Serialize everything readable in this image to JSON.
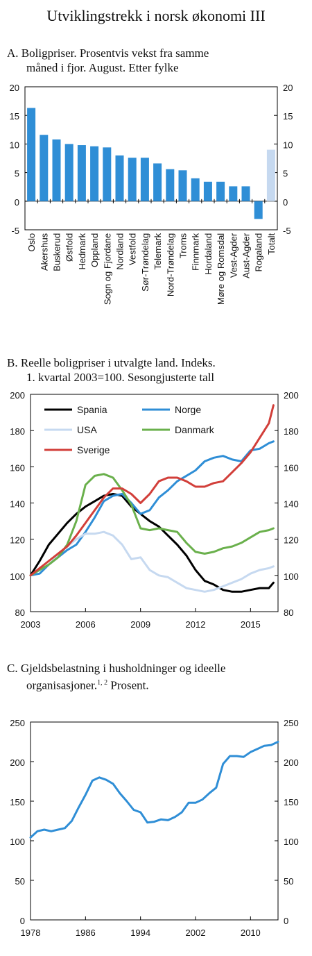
{
  "page": {
    "title": "Utviklingstrekk i norsk økonomi III"
  },
  "panels": [
    {
      "letter": "A.",
      "title_line1": "Boligpriser. Prosentvis vekst fra samme",
      "title_line2": "måned i fjor. August. Etter fylke"
    },
    {
      "letter": "B.",
      "title_line1": "Reelle boligpriser i utvalgte land. Indeks.",
      "title_line2": "1. kvartal 2003=100. Sesongjusterte tall"
    },
    {
      "letter": "C.",
      "title_line1": "Gjeldsbelastning i husholdninger og ideelle",
      "title_line2": "organisasjoner.",
      "superscript": "1, 2",
      "title_line2_tail": " Prosent."
    }
  ],
  "chart_data": [
    {
      "type": "bar",
      "categories": [
        "Oslo",
        "Akershus",
        "Buskerud",
        "Østfold",
        "Hedmark",
        "Oppland",
        "Sogn og Fjordane",
        "Nordland",
        "Vestfold",
        "Sør-Trøndelag",
        "Telemark",
        "Nord-Trøndelag",
        "Troms",
        "Finnmark",
        "Hordaland",
        "Møre og Romsdal",
        "Vest-Agder",
        "Aust-Agder",
        "Rogaland",
        "Totalt"
      ],
      "values": [
        16.3,
        11.6,
        10.8,
        10.0,
        9.8,
        9.6,
        9.4,
        8.0,
        7.6,
        7.6,
        6.6,
        5.6,
        5.4,
        4.0,
        3.4,
        3.4,
        2.6,
        2.6,
        -3.1,
        9.0
      ],
      "colors": {
        "bar": "#2f8ed6",
        "total": "#c6d9f0"
      },
      "ylim": [
        -5,
        20
      ],
      "yticks": [
        -5,
        0,
        5,
        10,
        15,
        20
      ],
      "dual_axis": true
    },
    {
      "type": "line",
      "ylim": [
        80,
        200
      ],
      "yticks": [
        80,
        100,
        120,
        140,
        160,
        180,
        200
      ],
      "xlim": [
        2003,
        2016.5
      ],
      "xticks": [
        2003,
        2006,
        2009,
        2012,
        2015
      ],
      "dual_axis": true,
      "series": [
        {
          "name": "Spania",
          "color": "#000000",
          "x": [
            2003,
            2003.5,
            2004,
            2004.5,
            2005,
            2005.5,
            2006,
            2006.5,
            2007,
            2007.5,
            2008,
            2008.5,
            2009,
            2009.5,
            2010,
            2010.5,
            2011,
            2011.5,
            2012,
            2012.5,
            2013,
            2013.5,
            2014,
            2014.5,
            2015,
            2015.5,
            2016,
            2016.25
          ],
          "values": [
            100,
            108,
            117,
            123,
            129,
            134,
            138,
            141,
            144,
            145,
            144,
            138,
            134,
            130,
            127,
            122,
            117,
            111,
            103,
            97,
            95,
            92,
            91,
            91,
            92,
            93,
            93,
            96
          ]
        },
        {
          "name": "Norge",
          "color": "#2f8ed6",
          "x": [
            2003,
            2003.5,
            2004,
            2004.5,
            2005,
            2005.5,
            2006,
            2006.5,
            2007,
            2007.5,
            2008,
            2008.5,
            2009,
            2009.5,
            2010,
            2010.5,
            2011,
            2011.5,
            2012,
            2012.5,
            2013,
            2013.5,
            2014,
            2014.5,
            2015,
            2015.5,
            2016,
            2016.25
          ],
          "values": [
            100,
            101,
            106,
            110,
            114,
            117,
            124,
            132,
            141,
            144,
            145,
            140,
            134,
            136,
            143,
            147,
            152,
            155,
            158,
            163,
            165,
            166,
            164,
            163,
            169,
            170,
            173,
            174
          ]
        },
        {
          "name": "USA",
          "color": "#c6d9f0",
          "x": [
            2003,
            2003.5,
            2004,
            2004.5,
            2005,
            2005.5,
            2006,
            2006.5,
            2007,
            2007.5,
            2008,
            2008.5,
            2009,
            2009.5,
            2010,
            2010.5,
            2011,
            2011.5,
            2012,
            2012.5,
            2013,
            2013.5,
            2014,
            2014.5,
            2015,
            2015.5,
            2016,
            2016.25
          ],
          "values": [
            100,
            103,
            106,
            111,
            116,
            120,
            123,
            123,
            124,
            122,
            117,
            109,
            110,
            103,
            100,
            99,
            96,
            93,
            92,
            91,
            92,
            94,
            96,
            98,
            101,
            103,
            104,
            105
          ]
        },
        {
          "name": "Danmark",
          "color": "#6ab04c",
          "x": [
            2003,
            2003.5,
            2004,
            2004.5,
            2005,
            2005.5,
            2006,
            2006.5,
            2007,
            2007.5,
            2008,
            2008.5,
            2009,
            2009.5,
            2010,
            2010.5,
            2011,
            2011.5,
            2012,
            2012.5,
            2013,
            2013.5,
            2014,
            2014.5,
            2015,
            2015.5,
            2016,
            2016.25
          ],
          "values": [
            100,
            103,
            106,
            110,
            117,
            130,
            150,
            155,
            156,
            154,
            147,
            139,
            126,
            125,
            126,
            125,
            124,
            118,
            113,
            112,
            113,
            115,
            116,
            118,
            121,
            124,
            125,
            126
          ]
        },
        {
          "name": "Sverige",
          "color": "#d23f3a",
          "x": [
            2003,
            2003.5,
            2004,
            2004.5,
            2005,
            2005.5,
            2006,
            2006.5,
            2007,
            2007.5,
            2008,
            2008.5,
            2009,
            2009.5,
            2010,
            2010.5,
            2011,
            2011.5,
            2012,
            2012.5,
            2013,
            2013.5,
            2014,
            2014.5,
            2015,
            2015.5,
            2016,
            2016.25
          ],
          "values": [
            100,
            104,
            108,
            112,
            116,
            122,
            129,
            136,
            143,
            148,
            148,
            145,
            140,
            145,
            152,
            154,
            154,
            152,
            149,
            149,
            151,
            152,
            157,
            162,
            168,
            176,
            184,
            194
          ]
        }
      ]
    },
    {
      "type": "line",
      "ylim": [
        0,
        250
      ],
      "yticks": [
        0,
        50,
        100,
        150,
        200,
        250
      ],
      "xlim": [
        1978,
        2014
      ],
      "xticks": [
        1978,
        1986,
        1994,
        2002,
        2010
      ],
      "dual_axis": true,
      "series": [
        {
          "name": "",
          "color": "#2f8ed6",
          "x": [
            1978,
            1979,
            1980,
            1981,
            1982,
            1983,
            1984,
            1985,
            1986,
            1987,
            1988,
            1989,
            1990,
            1991,
            1992,
            1993,
            1994,
            1995,
            1996,
            1997,
            1998,
            1999,
            2000,
            2001,
            2002,
            2003,
            2004,
            2005,
            2006,
            2007,
            2008,
            2009,
            2010,
            2011,
            2012,
            2013,
            2014
          ],
          "values": [
            104,
            112,
            114,
            112,
            114,
            116,
            125,
            142,
            158,
            176,
            180,
            177,
            172,
            160,
            150,
            139,
            136,
            123,
            124,
            127,
            126,
            130,
            136,
            148,
            148,
            152,
            160,
            167,
            197,
            207,
            207,
            206,
            212,
            216,
            220,
            221,
            225
          ]
        }
      ]
    }
  ]
}
